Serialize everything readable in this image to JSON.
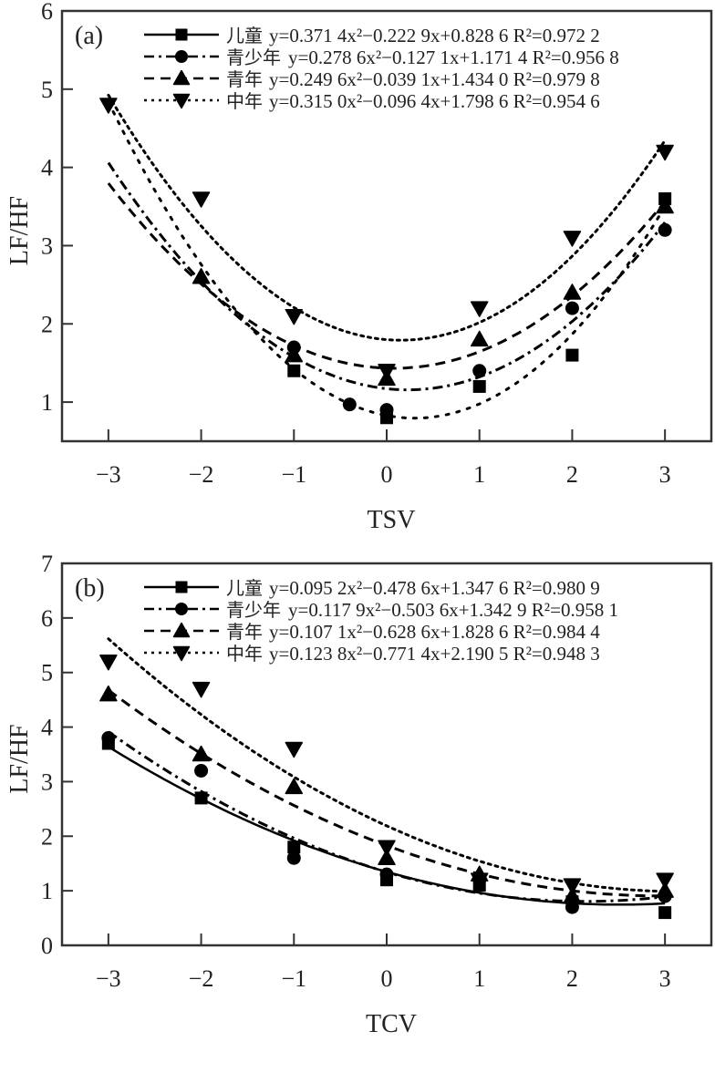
{
  "chart_data": [
    {
      "type": "scatter",
      "panel_label": "(a)",
      "xlabel": "TSV",
      "ylabel": "LF/HF",
      "xlim": [
        -3.5,
        3.5
      ],
      "ylim": [
        0.5,
        6
      ],
      "x_ticks": [
        "−3",
        "−2",
        "−1",
        "0",
        "1",
        "2",
        "3"
      ],
      "x_tick_values": [
        -3,
        -2,
        -1,
        0,
        1,
        2,
        3
      ],
      "y_ticks": [
        "1",
        "2",
        "3",
        "4",
        "5",
        "6"
      ],
      "y_tick_values": [
        1,
        2,
        3,
        4,
        5,
        6
      ],
      "legend_position": "top",
      "series": [
        {
          "name": "儿童",
          "marker": "square",
          "line": "dotted-sparse",
          "equation": "y=0.371 4x²−0.222 9x+0.828 6 R²=0.972 2",
          "coef": [
            0.3714,
            -0.2229,
            0.8286
          ],
          "r2": 0.9722,
          "x": [
            -1,
            0,
            1,
            2,
            3
          ],
          "values": [
            1.4,
            0.8,
            1.2,
            1.6,
            3.6
          ]
        },
        {
          "name": "青少年",
          "marker": "circle",
          "line": "dash-dot",
          "equation": "y=0.278 6x²−0.127 1x+1.171 4 R²=0.956 8",
          "coef": [
            0.2786,
            -0.1271,
            1.1714
          ],
          "r2": 0.9568,
          "x": [
            -1,
            -0.4,
            0,
            1,
            2,
            3
          ],
          "values": [
            1.7,
            0.97,
            0.9,
            1.4,
            2.2,
            3.2
          ]
        },
        {
          "name": "青年",
          "marker": "triangle-up",
          "line": "dashed",
          "equation": "y=0.249 6x²−0.039 1x+1.434 0 R²=0.979 8",
          "coef": [
            0.2496,
            -0.0391,
            1.434
          ],
          "r2": 0.9798,
          "x": [
            -2,
            -1,
            0,
            1,
            2,
            3
          ],
          "values": [
            2.6,
            1.6,
            1.3,
            1.8,
            2.4,
            3.5
          ]
        },
        {
          "name": "中年",
          "marker": "triangle-down",
          "line": "dotted",
          "equation": "y=0.315 0x²−0.096 4x+1.798 6 R²=0.954 6",
          "coef": [
            0.315,
            -0.0964,
            1.7986
          ],
          "r2": 0.9546,
          "x": [
            -3,
            -2,
            -1,
            0,
            1,
            2,
            3
          ],
          "values": [
            4.8,
            3.6,
            2.1,
            1.4,
            2.2,
            3.1,
            4.2
          ]
        }
      ]
    },
    {
      "type": "scatter",
      "panel_label": "(b)",
      "xlabel": "TCV",
      "ylabel": "LF/HF",
      "xlim": [
        -3.5,
        3.5
      ],
      "ylim": [
        0,
        7
      ],
      "x_ticks": [
        "−3",
        "−2",
        "−1",
        "0",
        "1",
        "2",
        "3"
      ],
      "x_tick_values": [
        -3,
        -2,
        -1,
        0,
        1,
        2,
        3
      ],
      "y_ticks": [
        "0",
        "1",
        "2",
        "3",
        "4",
        "5",
        "6",
        "7"
      ],
      "y_tick_values": [
        0,
        1,
        2,
        3,
        4,
        5,
        6,
        7
      ],
      "legend_position": "top",
      "series": [
        {
          "name": "儿童",
          "marker": "square",
          "line": "solid",
          "equation": "y=0.095 2x²−0.478 6x+1.347 6 R²=0.980 9",
          "coef": [
            0.0952,
            -0.4786,
            1.3476
          ],
          "r2": 0.9809,
          "x": [
            -3,
            -2,
            -1,
            0,
            1,
            2,
            3
          ],
          "values": [
            3.7,
            2.7,
            1.8,
            1.2,
            1.1,
            0.8,
            0.6
          ]
        },
        {
          "name": "青少年",
          "marker": "circle",
          "line": "dash-dot",
          "equation": "y=0.117 9x²−0.503 6x+1.342 9 R²=0.958 1",
          "coef": [
            0.1179,
            -0.5036,
            1.3429
          ],
          "r2": 0.9581,
          "x": [
            -3,
            -2,
            -1,
            0,
            1,
            2,
            3
          ],
          "values": [
            3.8,
            3.2,
            1.6,
            1.3,
            1.2,
            0.7,
            0.9
          ]
        },
        {
          "name": "青年",
          "marker": "triangle-up",
          "line": "dashed",
          "equation": "y=0.107 1x²−0.628 6x+1.828 6 R²=0.984 4",
          "coef": [
            0.1071,
            -0.6286,
            1.8286
          ],
          "r2": 0.9844,
          "x": [
            -3,
            -2,
            -1,
            0,
            1,
            2,
            3
          ],
          "values": [
            4.6,
            3.5,
            2.9,
            1.6,
            1.3,
            0.9,
            1.0
          ]
        },
        {
          "name": "中年",
          "marker": "triangle-down",
          "line": "dotted",
          "equation": "y=0.123 8x²−0.771 4x+2.190 5 R²=0.948 3",
          "coef": [
            0.1238,
            -0.7714,
            2.1905
          ],
          "r2": 0.9483,
          "x": [
            -3,
            -2,
            -1,
            0,
            1,
            2,
            3
          ],
          "values": [
            5.2,
            4.7,
            3.6,
            1.8,
            1.2,
            1.1,
            1.2
          ]
        }
      ]
    }
  ]
}
